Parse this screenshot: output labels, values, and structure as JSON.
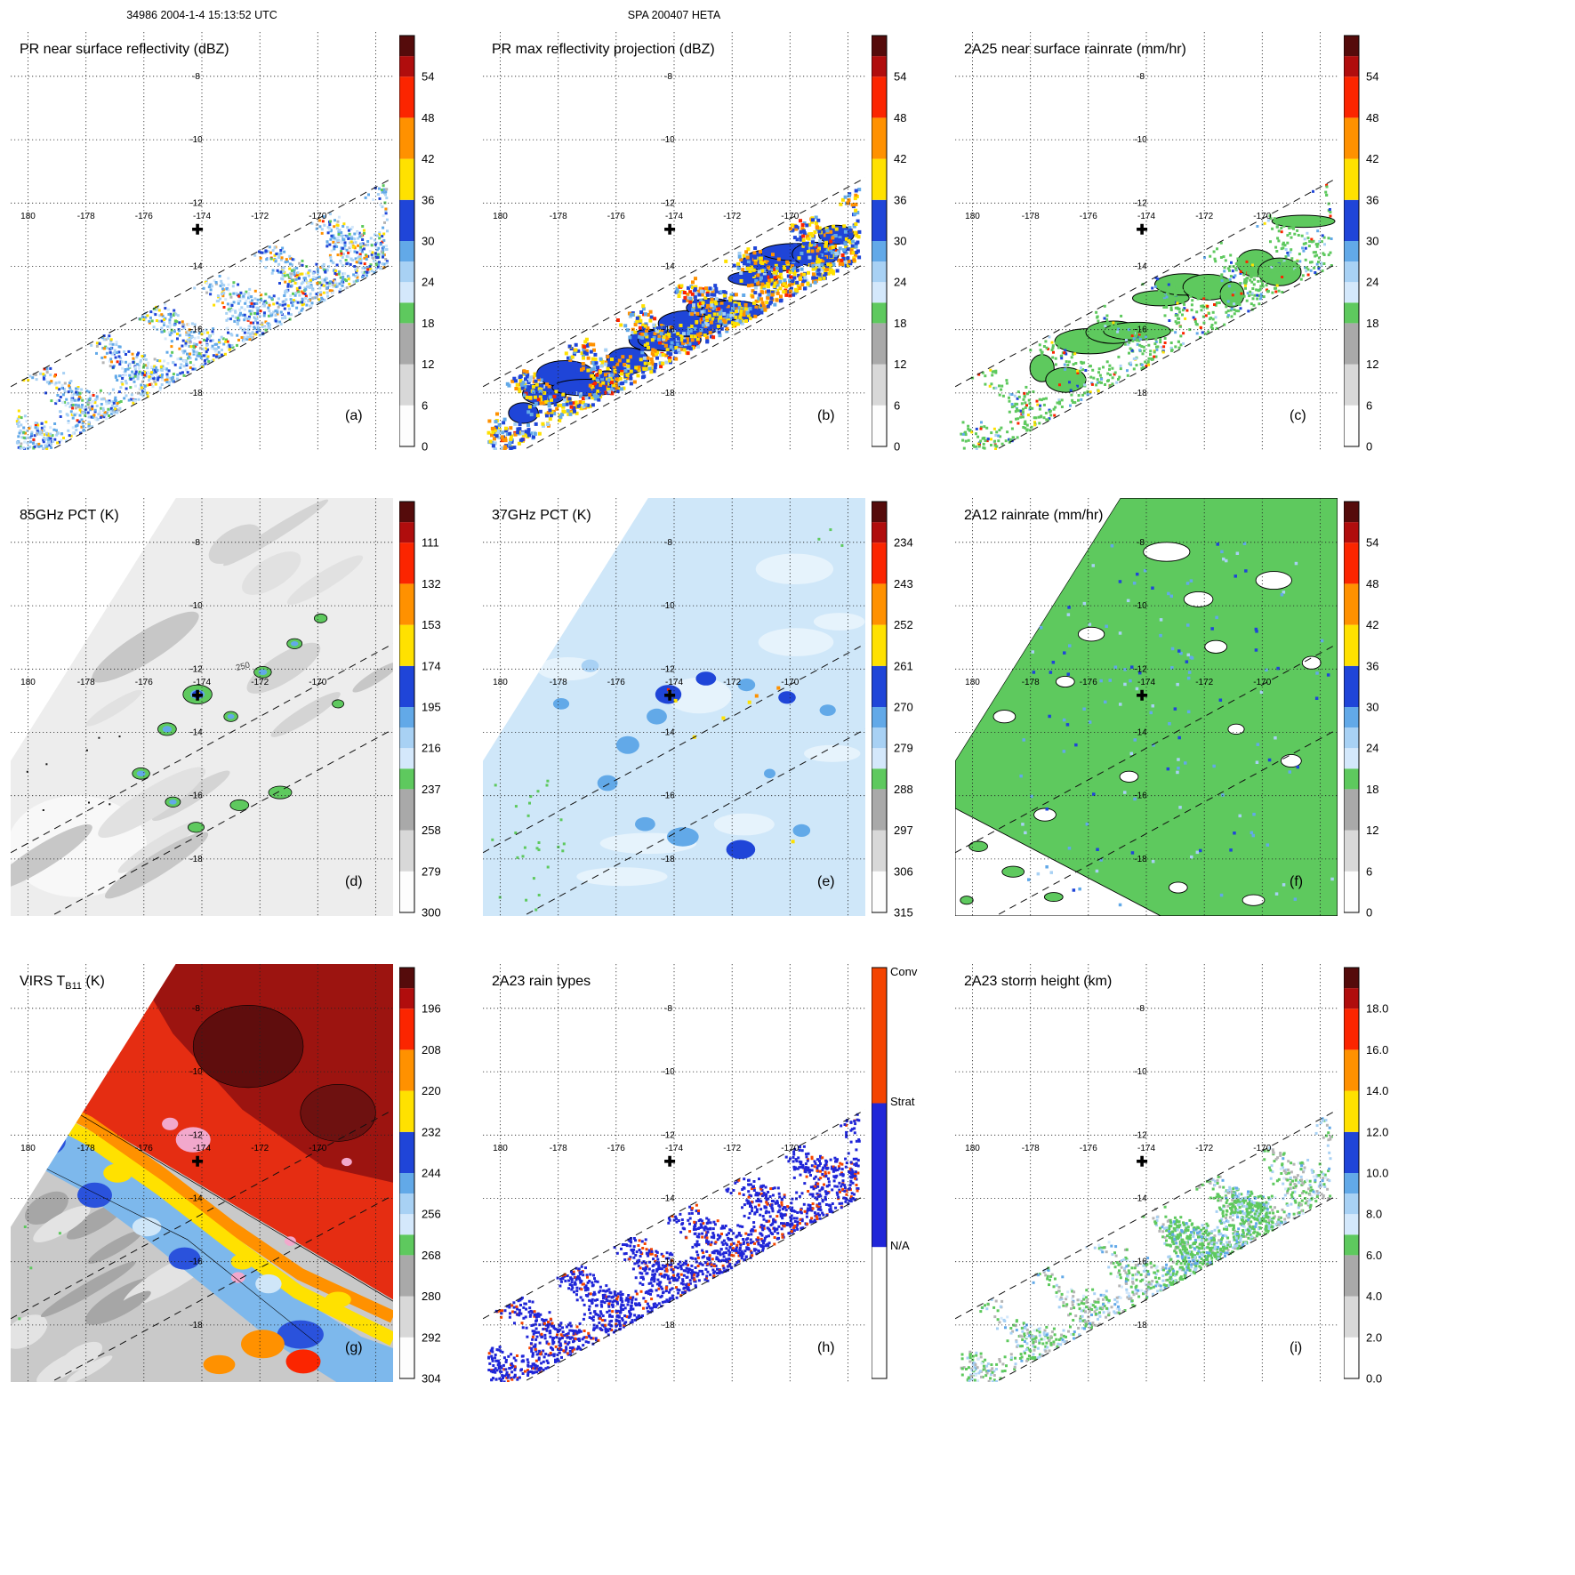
{
  "header": {
    "left": "34986 2004-1-4 15:13:52 UTC",
    "center": "SPA 200407 HETA"
  },
  "axes": {
    "lon_labels": [
      "180",
      "-178",
      "-176",
      "-174",
      "-172",
      "-170"
    ],
    "lon_values": [
      -180,
      -178,
      -176,
      -174,
      -172,
      -170
    ],
    "lat_labels": [
      "-8",
      "-10",
      "-12",
      "-14",
      "-16",
      "-18"
    ],
    "lat_values": [
      -8,
      -10,
      -12,
      -14,
      -16,
      -18
    ]
  },
  "palette": {
    "segments": [
      [
        0.0,
        0.1,
        "#fdfdfd"
      ],
      [
        0.1,
        0.2,
        "#d8d8d8"
      ],
      [
        0.2,
        0.3,
        "#a9a9a9"
      ],
      [
        0.3,
        0.35,
        "#5ec95e"
      ],
      [
        0.35,
        0.4,
        "#d4e8fb"
      ],
      [
        0.4,
        0.45,
        "#a8d1f4"
      ],
      [
        0.45,
        0.5,
        "#62a9e8"
      ],
      [
        0.5,
        0.6,
        "#1f45d8"
      ],
      [
        0.6,
        0.7,
        "#ffe100"
      ],
      [
        0.7,
        0.8,
        "#ff9100"
      ],
      [
        0.8,
        0.9,
        "#fb2500"
      ],
      [
        0.9,
        0.95,
        "#b00d0d"
      ],
      [
        0.95,
        1.0,
        "#550b0b"
      ]
    ],
    "rain_types": [
      [
        0.0,
        0.32,
        "#ffffff"
      ],
      [
        0.32,
        0.67,
        "#2026d8"
      ],
      [
        0.67,
        1.0,
        "#f44400"
      ]
    ],
    "map": {
      "green": "#5ec95e",
      "pale_blue": "#d4e8fb",
      "light_blue": "#a8d1f4",
      "mid_blue": "#62a9e8",
      "blue": "#1f45d8",
      "yellow": "#ffe100",
      "orange": "#ff9100",
      "red": "#fb2500",
      "dark_red": "#9c1410",
      "maroon": "#5f0d0d",
      "pink": "#f2a8cc",
      "gray_light": "#ededed",
      "gray": "#b5b5b5",
      "gray_dark": "#9a9a9a",
      "white": "#ffffff",
      "strat_blue": "#2026d8",
      "conv_red": "#f44400"
    }
  },
  "panels": [
    {
      "id": "a",
      "title": "PR near surface reflectivity (dBZ)",
      "letter": "(a)",
      "field": "pr_reflectivity",
      "colorbar_ticks": [
        "54",
        "48",
        "42",
        "36",
        "30",
        "24",
        "18",
        "12",
        "6",
        "0"
      ]
    },
    {
      "id": "b",
      "title": "PR max reflectivity projection (dBZ)",
      "letter": "(b)",
      "field": "pr_max",
      "colorbar_ticks": [
        "54",
        "48",
        "42",
        "36",
        "30",
        "24",
        "18",
        "12",
        "6",
        "0"
      ]
    },
    {
      "id": "c",
      "title": "2A25 near surface rainrate (mm/hr)",
      "letter": "(c)",
      "field": "rainrate_pr",
      "colorbar_ticks": [
        "54",
        "48",
        "42",
        "36",
        "30",
        "24",
        "18",
        "12",
        "6",
        "0"
      ]
    },
    {
      "id": "d",
      "title": "85GHz PCT (K)",
      "letter": "(d)",
      "field": "pct85",
      "contour_label": "250",
      "colorbar_ticks": [
        "111",
        "132",
        "153",
        "174",
        "195",
        "216",
        "237",
        "258",
        "279",
        "300"
      ]
    },
    {
      "id": "e",
      "title": "37GHz PCT (K)",
      "letter": "(e)",
      "field": "pct37",
      "colorbar_ticks": [
        "234",
        "243",
        "252",
        "261",
        "270",
        "279",
        "288",
        "297",
        "306",
        "315"
      ]
    },
    {
      "id": "f",
      "title": "2A12 rainrate (mm/hr)",
      "letter": "(f)",
      "field": "rainrate_tmi",
      "colorbar_ticks": [
        "54",
        "48",
        "42",
        "36",
        "30",
        "24",
        "18",
        "12",
        "6",
        "0"
      ]
    },
    {
      "id": "g",
      "title": "VIRS TB11 (K)",
      "letter": "(g)",
      "field": "virs",
      "title_parts": {
        "prefix": "VIRS T",
        "sub": "B11",
        "suffix": " (K)"
      },
      "colorbar_ticks": [
        "196",
        "208",
        "220",
        "232",
        "244",
        "256",
        "268",
        "280",
        "292",
        "304"
      ]
    },
    {
      "id": "h",
      "title": "2A23 rain types",
      "letter": "(h)",
      "field": "raintype",
      "colorbar_labels": [
        "Conv",
        "Strat",
        "N/A"
      ]
    },
    {
      "id": "i",
      "title": "2A23 storm height (km)",
      "letter": "(i)",
      "field": "stormheight",
      "colorbar_ticks": [
        "18.0",
        "16.0",
        "14.0",
        "12.0",
        "10.0",
        "8.0",
        "6.0",
        "4.0",
        "2.0",
        "0.0"
      ]
    }
  ],
  "chart_data": {
    "figure_type": "3x3 multi-panel satellite precipitation-feature maps",
    "shared_axes": {
      "lon_ticks": [
        -180,
        -178,
        -176,
        -174,
        -172,
        -170
      ],
      "lat_ticks": [
        -8,
        -10,
        -12,
        -14,
        -16,
        -18
      ],
      "lon_extent": [
        -180.6,
        -167.4
      ],
      "lat_extent": [
        -19.8,
        -6.6
      ],
      "grid_spacing_deg": 2,
      "gridlines": "dotted",
      "pr_swath": "diagonal SW-NE band bounded by two dashed lines",
      "storm_marker": {
        "symbol": "+",
        "lon": -174.2,
        "lat": -12.8
      }
    },
    "panels": [
      {
        "panel": "(a)",
        "type": "heatmap",
        "title": "PR near surface reflectivity (dBZ)",
        "units": "dBZ",
        "colorbar_ticks": [
          54,
          48,
          42,
          36,
          30,
          24,
          18,
          12,
          6,
          0
        ],
        "summary": "Patchy 18-36 dBZ echoes (blue/cyan) along PR swath with embedded 36-48 dBZ cores (yellow/orange)"
      },
      {
        "panel": "(b)",
        "type": "heatmap",
        "title": "PR max reflectivity projection (dBZ)",
        "units": "dBZ",
        "colorbar_ticks": [
          54,
          48,
          42,
          36,
          30,
          24,
          18,
          12,
          6,
          0
        ],
        "summary": "Contiguous 30-36 dBZ (blue, black-contoured) regions with widespread 36-48 dBZ (yellow/orange) maxima"
      },
      {
        "panel": "(c)",
        "type": "heatmap",
        "title": "2A25 near surface rainrate (mm/hr)",
        "units": "mm/hr",
        "colorbar_ticks": [
          54,
          48,
          42,
          36,
          30,
          24,
          18,
          12,
          6,
          0
        ],
        "summary": "Mostly light rain 1-10 mm/hr (green, black-contoured) with isolated heavier cells (blue/red specks)"
      },
      {
        "panel": "(d)",
        "type": "heatmap",
        "title": "85GHz PCT (K)",
        "units": "K",
        "colorbar_ticks": [
          111,
          132,
          153,
          174,
          195,
          216,
          237,
          258,
          279,
          300
        ],
        "contour_label": 250,
        "summary": "Mostly 250-300 K (gray/white); depressed-PCT convective blobs 174-237 K (green outlines with blue cores); 250 K contour labeled"
      },
      {
        "panel": "(e)",
        "type": "heatmap",
        "title": "37GHz PCT (K)",
        "units": "K",
        "colorbar_ticks": [
          234,
          243,
          252,
          261,
          270,
          279,
          288,
          297,
          306,
          315
        ],
        "summary": "Mostly 270-288 K (light blue) with 252-270 K bands (blue); few <261 K pixels (yellow) near storm center"
      },
      {
        "panel": "(f)",
        "type": "heatmap",
        "title": "2A12 rainrate (mm/hr)",
        "units": "mm/hr",
        "colorbar_ticks": [
          54,
          48,
          42,
          36,
          30,
          24,
          18,
          12,
          6,
          0
        ],
        "summary": "Widespread 1-10 mm/hr (green, black-contoured) over wide TMI swath with embedded 12-30 mm/hr (blue) pixels"
      },
      {
        "panel": "(g)",
        "type": "heatmap",
        "title": "VIRS TB11 (K)",
        "units": "K",
        "colorbar_ticks": [
          196,
          208,
          220,
          232,
          244,
          256,
          268,
          280,
          292,
          304
        ],
        "summary": "Cold cloud shield 196-220 K (dark red/red) NE half, 220-244 K rim (orange/yellow), 256-304 K (blue/gray) SW; coldest <196 K pink spots near storm center"
      },
      {
        "panel": "(h)",
        "type": "categorical",
        "title": "2A23 rain types",
        "categories": [
          "Conv",
          "Strat",
          "N/A"
        ],
        "summary": "Predominantly stratiform (blue) PR swath with scattered convective (red) pixels"
      },
      {
        "panel": "(i)",
        "type": "heatmap",
        "title": "2A23 storm height (km)",
        "units": "km",
        "colorbar_ticks": [
          18.0,
          16.0,
          14.0,
          12.0,
          10.0,
          8.0,
          6.0,
          4.0,
          2.0,
          0.0
        ],
        "summary": "Storm heights mostly 4-8 km (gray/green) along PR swath with 8-12 km cells (light blue/blue)"
      }
    ]
  }
}
